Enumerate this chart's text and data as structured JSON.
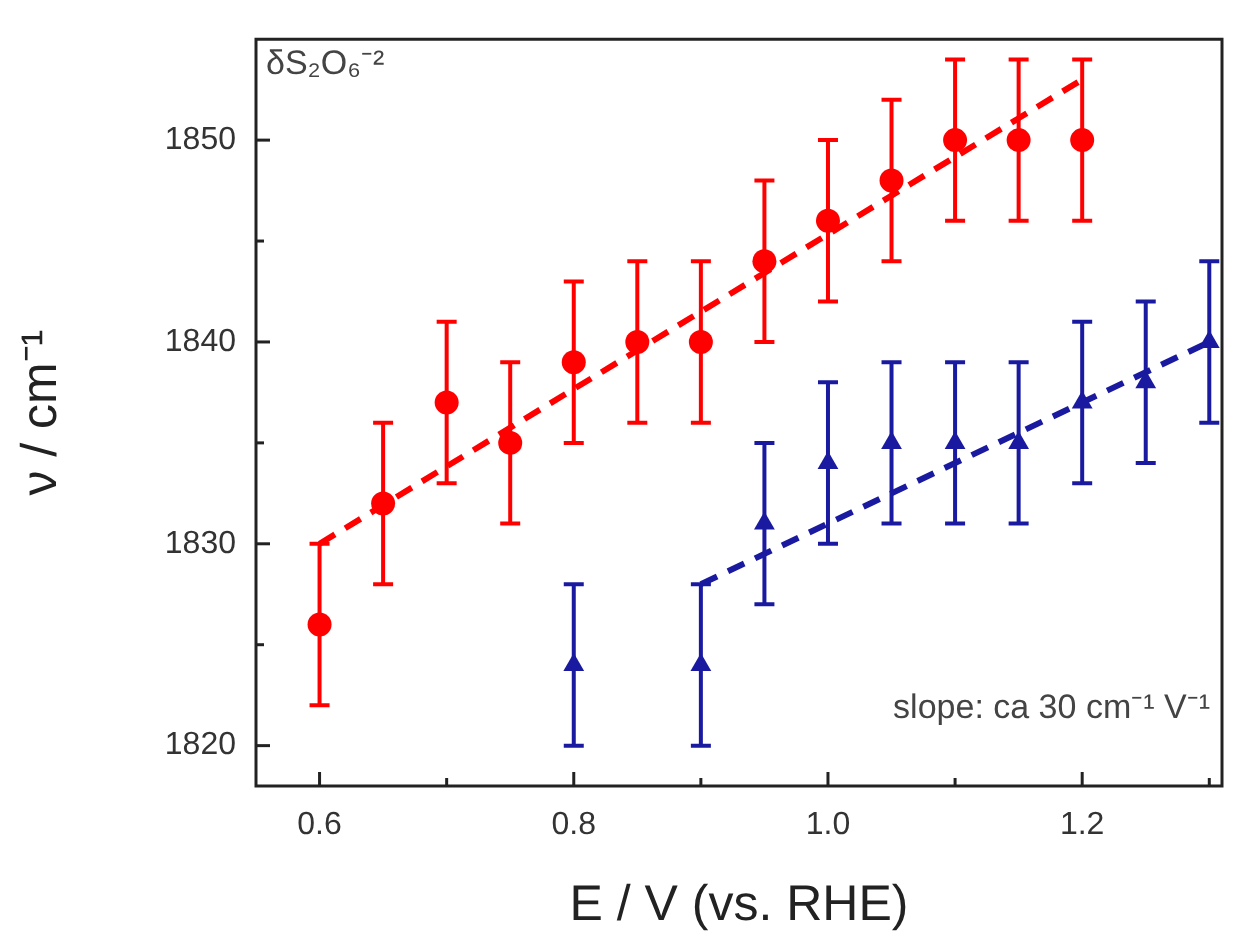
{
  "chart_data": {
    "type": "scatter",
    "xlabel": "E / V (vs. RHE)",
    "ylabel": "ν / cm⁻¹",
    "annotations": [
      "δS₂O₆⁻²",
      "slope: ca 30 cm⁻¹ V⁻¹"
    ],
    "xlim": [
      0.55,
      1.31
    ],
    "xticks": [
      0.6,
      {
        "value": 0.7,
        "label": null
      },
      0.8,
      {
        "value": 0.9,
        "label": null
      },
      {
        "value": 1.0,
        "label": "1.0"
      },
      {
        "value": 1.1,
        "label": null
      },
      1.2,
      {
        "value": 1.3,
        "label": null
      }
    ],
    "ylim": [
      1818,
      1855
    ],
    "yticks": [
      1820,
      {
        "value": 1825,
        "label": null
      },
      1830,
      {
        "value": 1835,
        "label": null
      },
      1840,
      {
        "value": 1845,
        "label": null
      },
      1850
    ],
    "grid": false,
    "legend": false,
    "series": [
      {
        "marker": "circle",
        "color": "#ff0000",
        "x": [
          0.6,
          0.65,
          0.7,
          0.75,
          0.8,
          0.85,
          0.9,
          0.95,
          1.0,
          1.05,
          1.1,
          1.15,
          1.2
        ],
        "values": [
          1826,
          1832,
          1837,
          1835,
          1839,
          1840,
          1840,
          1844,
          1846,
          1848,
          1850,
          1850,
          1850
        ],
        "errors": [
          4,
          4,
          4,
          4,
          4,
          4,
          4,
          4,
          4,
          4,
          4,
          4,
          4
        ]
      },
      {
        "marker": "triangle",
        "color": "#1a1aa0",
        "x": [
          0.8,
          0.9,
          0.95,
          1.0,
          1.05,
          1.1,
          1.15,
          1.2,
          1.25,
          1.3
        ],
        "values": [
          1824,
          1824,
          1831,
          1834,
          1835,
          1835,
          1835,
          1837,
          1838,
          1840
        ],
        "errors": [
          4,
          4,
          4,
          4,
          4,
          4,
          4,
          4,
          4,
          4
        ]
      },
      {
        "type": "line",
        "line_style": "dashed",
        "marker": "none",
        "color": "#ff0000",
        "x": [
          0.6,
          1.2
        ],
        "values": [
          1830,
          1853
        ]
      },
      {
        "type": "line",
        "line_style": "dashed",
        "marker": "none",
        "color": "#1a1aa0",
        "x": [
          0.9,
          1.3
        ],
        "values": [
          1828,
          1840
        ]
      }
    ]
  }
}
